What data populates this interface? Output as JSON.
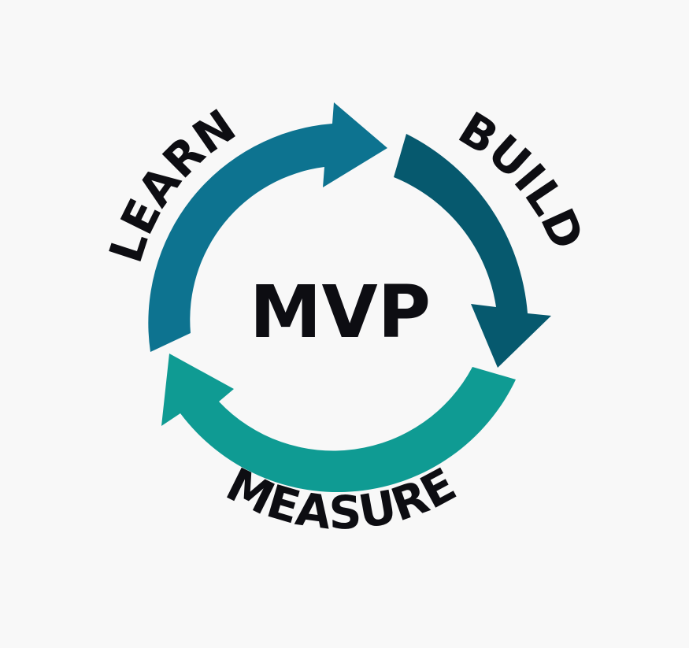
{
  "center_label": "MVP",
  "stages": [
    {
      "name": "learn",
      "label": "LEARN",
      "color": "#0d7390"
    },
    {
      "name": "build",
      "label": "BUILD",
      "color": "#06596e"
    },
    {
      "name": "measure",
      "label": "MEASURE",
      "color": "#0f9b93"
    }
  ]
}
